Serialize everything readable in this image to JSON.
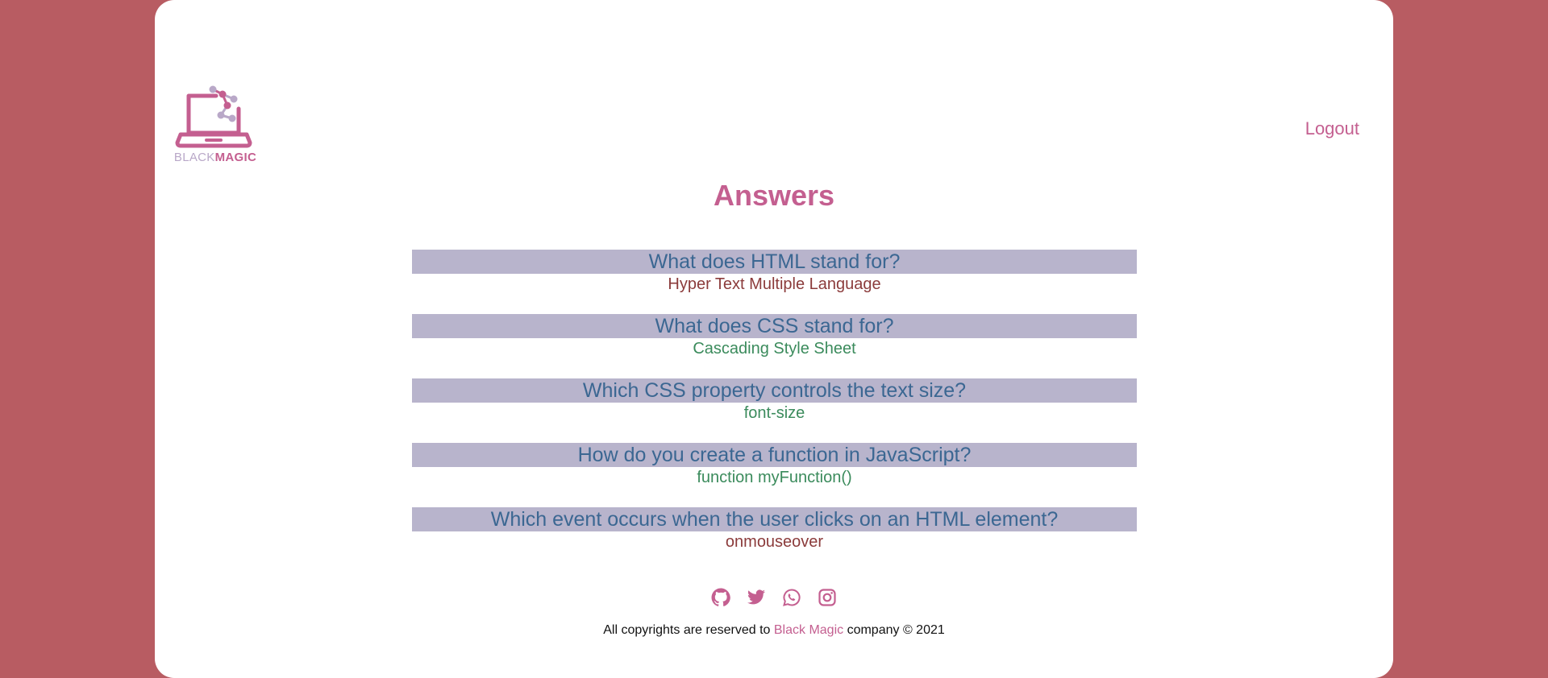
{
  "header": {
    "logo_text_light": "BLACK",
    "logo_text_bold": "MAGIC",
    "logout_label": "Logout"
  },
  "main": {
    "title": "Answers",
    "items": [
      {
        "question": "What does HTML stand for?",
        "answer": "Hyper Text Multiple Language",
        "status": "wrong"
      },
      {
        "question": "What does CSS stand for?",
        "answer": "Cascading Style Sheet",
        "status": "correct"
      },
      {
        "question": "Which CSS property controls the text size?",
        "answer": "font-size",
        "status": "correct"
      },
      {
        "question": "How do you create a function in JavaScript?",
        "answer": "function myFunction()",
        "status": "correct"
      },
      {
        "question": "Which event occurs when the user clicks on an HTML element?",
        "answer": "onmouseover",
        "status": "wrong"
      }
    ]
  },
  "footer": {
    "socials": [
      {
        "icon": "github-icon"
      },
      {
        "icon": "twitter-icon"
      },
      {
        "icon": "whatsapp-icon"
      },
      {
        "icon": "instagram-icon"
      }
    ],
    "copyright_prefix": "All copyrights are reserved to",
    "copyright_brand": "Black Magic",
    "copyright_suffix": "company © 2021"
  },
  "colors": {
    "page_background": "#b85c62",
    "accent": "#c45f90",
    "question_bar": "#b8b4cc",
    "question_text": "#3b6792",
    "answer_correct": "#3b8b5c",
    "answer_wrong": "#8b3b3b"
  }
}
